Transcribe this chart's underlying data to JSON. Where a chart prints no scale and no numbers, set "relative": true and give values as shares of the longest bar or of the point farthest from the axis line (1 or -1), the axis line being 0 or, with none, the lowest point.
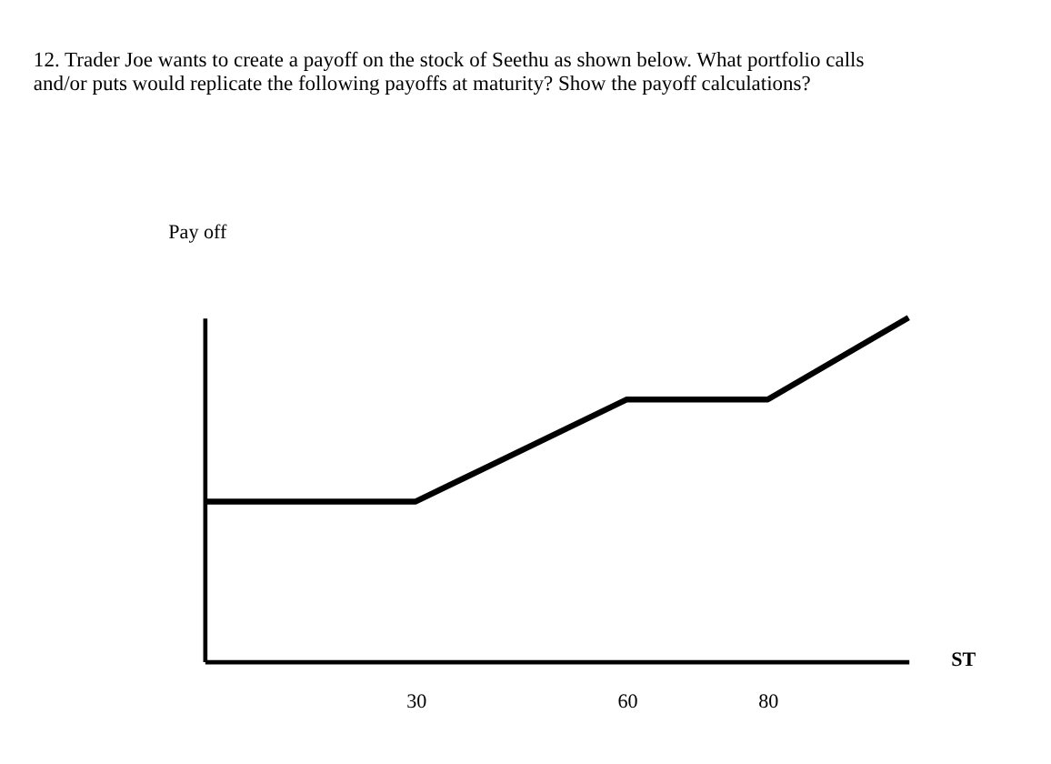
{
  "chart_data": {
    "type": "line",
    "title": "12. Trader Joe wants to create a payoff on the stock of Seethu as shown below.  What portfolio calls and/or puts would replicate the following payoffs at maturity?  Show the payoff calculations?",
    "xlabel": "ST",
    "ylabel": "Pay off",
    "relative": true,
    "x": [
      0,
      30,
      60,
      80,
      100
    ],
    "series": [
      {
        "color": "#000000",
        "values": [
          0.465,
          0.465,
          0.762,
          0.762,
          1
        ]
      }
    ],
    "xlim": [
      0,
      100
    ],
    "xticks": [
      30,
      60,
      80
    ],
    "tick_labels": "x",
    "grid": false,
    "marker": "none",
    "line_style": "solid"
  }
}
